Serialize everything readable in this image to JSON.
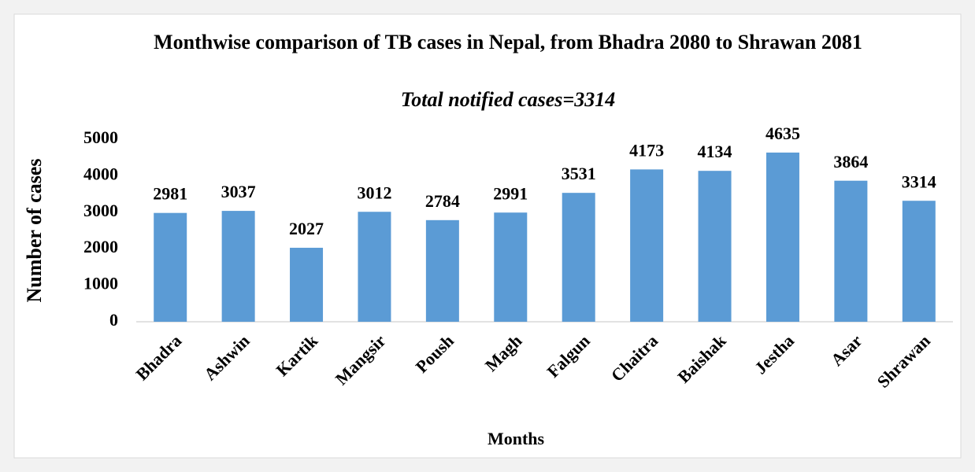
{
  "chart_data": {
    "type": "bar",
    "title": "Monthwise comparison of TB cases in Nepal, from Bhadra 2080 to Shrawan 2081",
    "subtitle": "Total notified cases=3314",
    "x_label": "Months",
    "y_label": "Number of cases",
    "categories": [
      "Bhadra",
      "Ashwin",
      "Kartik",
      "Mangsir",
      "Poush",
      "Magh",
      "Falgun",
      "Chaitra",
      "Baishak",
      "Jestha",
      "Asar",
      "Shrawan"
    ],
    "values": [
      2981,
      3037,
      2027,
      3012,
      2784,
      2991,
      3531,
      4173,
      4134,
      4635,
      3864,
      3314
    ],
    "color": "#5b9bd5",
    "ylim": [
      0,
      5000
    ],
    "yticks": [
      0,
      1000,
      2000,
      3000,
      4000,
      5000
    ],
    "grid": false
  }
}
